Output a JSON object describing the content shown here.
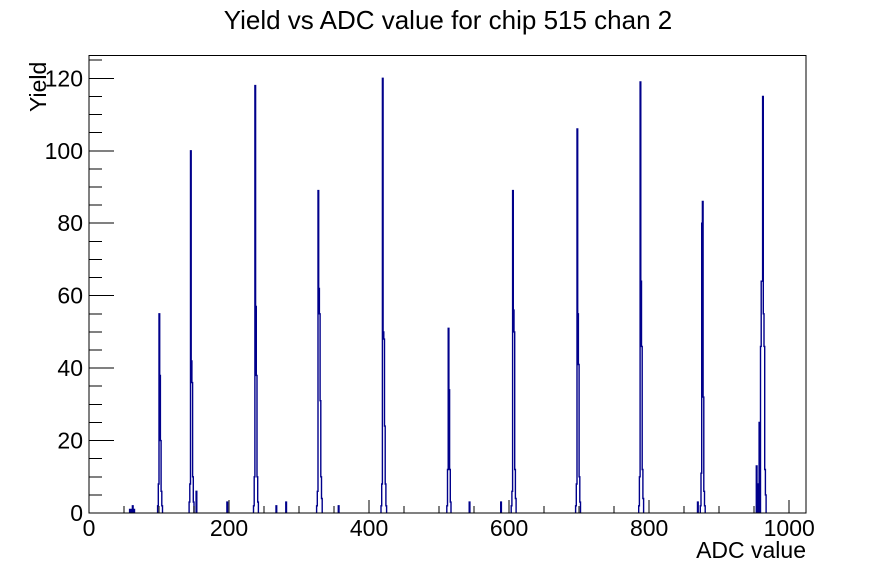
{
  "chart_data": {
    "type": "bar",
    "title": "Yield vs ADC value for chip 515 chan 2",
    "xlabel": "ADC value",
    "ylabel": "Yield",
    "xlim": [
      0,
      1024
    ],
    "ylim": [
      0,
      126.3
    ],
    "x_major_ticks": [
      0,
      200,
      400,
      600,
      800,
      1000
    ],
    "x_minor_step": 50,
    "y_major_ticks": [
      0,
      20,
      40,
      60,
      80,
      100,
      120
    ],
    "y_minor_step": 5,
    "grid": "off",
    "legend": "none",
    "bar_color": "#00008b",
    "axis_color": "#000000",
    "background_color": "#ffffff",
    "bins_format": [
      "adc",
      "yield"
    ],
    "bins": [
      [
        58,
        1
      ],
      [
        60,
        1
      ],
      [
        62,
        2
      ],
      [
        64,
        1
      ],
      [
        98,
        2
      ],
      [
        99,
        8
      ],
      [
        100,
        55
      ],
      [
        101,
        38
      ],
      [
        102,
        20
      ],
      [
        103,
        6
      ],
      [
        104,
        2
      ],
      [
        143,
        3
      ],
      [
        144,
        8
      ],
      [
        145,
        100
      ],
      [
        146,
        42
      ],
      [
        147,
        36
      ],
      [
        148,
        10
      ],
      [
        149,
        3
      ],
      [
        153,
        6
      ],
      [
        197,
        3
      ],
      [
        235,
        2
      ],
      [
        236,
        10
      ],
      [
        237,
        118
      ],
      [
        238,
        57
      ],
      [
        239,
        38
      ],
      [
        240,
        10
      ],
      [
        241,
        3
      ],
      [
        267,
        2
      ],
      [
        281,
        3
      ],
      [
        325,
        2
      ],
      [
        326,
        6
      ],
      [
        327,
        89
      ],
      [
        328,
        62
      ],
      [
        329,
        55
      ],
      [
        330,
        31
      ],
      [
        331,
        10
      ],
      [
        332,
        4
      ],
      [
        356,
        2
      ],
      [
        417,
        2
      ],
      [
        418,
        8
      ],
      [
        419,
        120
      ],
      [
        420,
        50
      ],
      [
        421,
        48
      ],
      [
        422,
        24
      ],
      [
        423,
        8
      ],
      [
        424,
        2
      ],
      [
        511,
        2
      ],
      [
        512,
        12
      ],
      [
        513,
        51
      ],
      [
        514,
        34
      ],
      [
        515,
        12
      ],
      [
        516,
        3
      ],
      [
        543,
        3
      ],
      [
        588,
        3
      ],
      [
        603,
        2
      ],
      [
        604,
        6
      ],
      [
        605,
        89
      ],
      [
        606,
        56
      ],
      [
        607,
        50
      ],
      [
        608,
        12
      ],
      [
        609,
        4
      ],
      [
        695,
        2
      ],
      [
        696,
        8
      ],
      [
        697,
        106
      ],
      [
        698,
        55
      ],
      [
        699,
        41
      ],
      [
        700,
        10
      ],
      [
        701,
        3
      ],
      [
        785,
        2
      ],
      [
        786,
        10
      ],
      [
        787,
        119
      ],
      [
        788,
        64
      ],
      [
        789,
        46
      ],
      [
        790,
        12
      ],
      [
        791,
        4
      ],
      [
        869,
        3
      ],
      [
        873,
        2
      ],
      [
        874,
        11
      ],
      [
        875,
        80
      ],
      [
        876,
        86
      ],
      [
        877,
        32
      ],
      [
        878,
        6
      ],
      [
        879,
        2
      ],
      [
        953,
        13
      ],
      [
        954,
        8
      ],
      [
        957,
        25
      ],
      [
        959,
        46
      ],
      [
        960,
        64
      ],
      [
        961,
        64
      ],
      [
        962,
        115
      ],
      [
        963,
        55
      ],
      [
        964,
        46
      ],
      [
        965,
        12
      ],
      [
        966,
        5
      ]
    ]
  }
}
